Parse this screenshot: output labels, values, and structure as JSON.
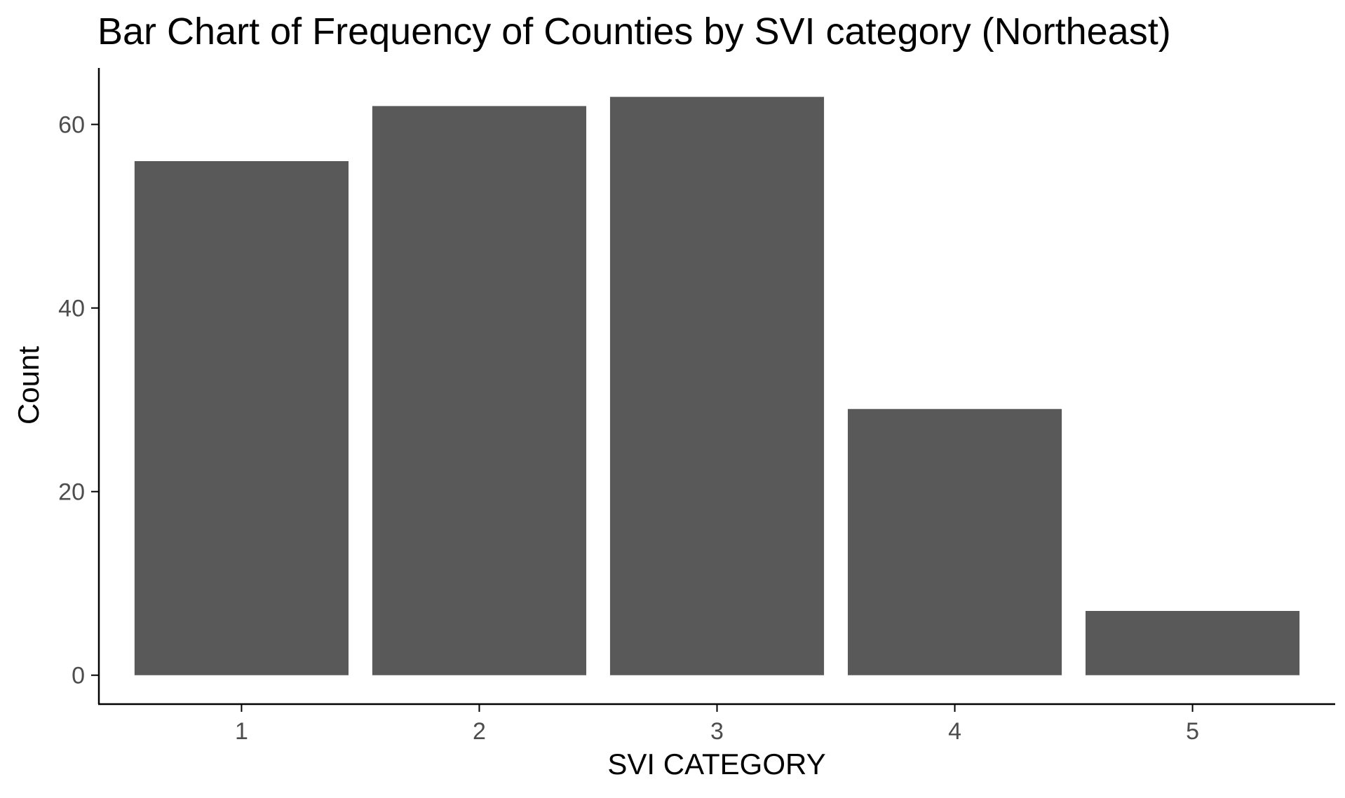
{
  "chart_data": {
    "type": "bar",
    "title": "Bar Chart of Frequency of Counties by SVI category (Northeast)",
    "xlabel": "SVI CATEGORY",
    "ylabel": "Count",
    "categories": [
      "1",
      "2",
      "3",
      "4",
      "5"
    ],
    "values": [
      56,
      62,
      63,
      29,
      7
    ],
    "yticks": [
      0,
      20,
      40,
      60
    ],
    "ytick_labels": [
      "0",
      "20",
      "40",
      "60"
    ],
    "ylim": [
      -3.15,
      66.15
    ],
    "grid": false,
    "legend": "none",
    "bar_color": "#595959",
    "axis_color": "#000000",
    "tick_label_color": "#4d4d4d"
  }
}
